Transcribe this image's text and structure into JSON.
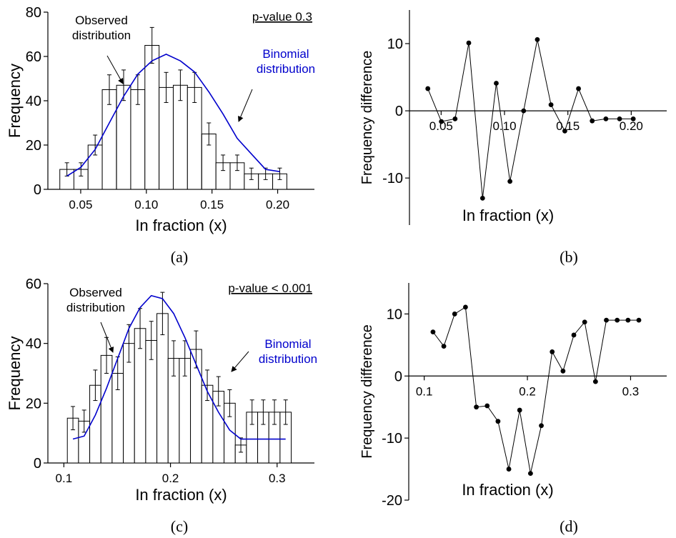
{
  "panels": {
    "a": {
      "caption": "(a)"
    },
    "b": {
      "caption": "(b)"
    },
    "c": {
      "caption": "(c)"
    },
    "d": {
      "caption": "(d)"
    }
  },
  "colors": {
    "axis": "#000000",
    "bars": "#000000",
    "binomial": "#0000cc",
    "diff": "#000000"
  },
  "chart_data": [
    {
      "panel": "a",
      "type": "bar",
      "xlabel": "In fraction (x)",
      "ylabel": "Frequency",
      "annotation_pvalue": "p-value 0.3",
      "annotation_observed": [
        "Observed",
        "distribution"
      ],
      "annotation_binomial": [
        "Binomial",
        "distribution"
      ],
      "xlim": [
        0.025,
        0.228
      ],
      "ylim": [
        0,
        80
      ],
      "xticks": [
        0.05,
        0.1,
        0.15,
        0.2
      ],
      "xtick_labels": [
        "0.05",
        "0.10",
        "0.15",
        "0.20"
      ],
      "yticks": [
        0,
        20,
        40,
        60,
        80
      ],
      "ytick_labels": [
        "0",
        "20",
        "40",
        "60",
        "80"
      ],
      "bar_width": 0.0108,
      "series": [
        {
          "name": "Observed distribution",
          "kind": "bar",
          "x": [
            0.0395,
            0.0502,
            0.061,
            0.0718,
            0.0827,
            0.0935,
            0.1043,
            0.1151,
            0.1259,
            0.1367,
            0.1476,
            0.1584,
            0.1692,
            0.18,
            0.1908,
            0.2016
          ],
          "values": [
            9,
            9,
            20,
            45,
            47,
            45,
            65,
            46,
            47,
            46,
            25,
            12,
            12,
            7,
            7,
            7
          ],
          "errors": [
            3,
            3,
            4.5,
            6.7,
            6.9,
            6.7,
            8.1,
            6.8,
            6.9,
            6.8,
            5,
            3.5,
            3.5,
            2.6,
            2.6,
            2.6
          ]
        },
        {
          "name": "Binomial distribution",
          "kind": "line",
          "x": [
            0.0395,
            0.0502,
            0.061,
            0.0718,
            0.0827,
            0.0935,
            0.1043,
            0.1151,
            0.1259,
            0.1367,
            0.1476,
            0.1584,
            0.1692,
            0.18,
            0.1908,
            0.2016
          ],
          "values": [
            6,
            10,
            18,
            30,
            42,
            52,
            58,
            61,
            58,
            53,
            44,
            34,
            23,
            16,
            9,
            8
          ]
        }
      ]
    },
    {
      "panel": "b",
      "type": "line",
      "xlabel": "In fraction (x)",
      "ylabel": "Frequency difference",
      "xlim": [
        0.025,
        0.228
      ],
      "ylim": [
        -17,
        15
      ],
      "xticks": [
        0.05,
        0.1,
        0.15,
        0.2
      ],
      "xtick_labels": [
        "0.05",
        "0.10",
        "0.15",
        "0.20"
      ],
      "yticks": [
        -10,
        0,
        10
      ],
      "ytick_labels": [
        "-10",
        "0",
        "10"
      ],
      "series": [
        {
          "kind": "line",
          "x": [
            0.0395,
            0.0502,
            0.061,
            0.0718,
            0.0827,
            0.0935,
            0.1043,
            0.1151,
            0.1259,
            0.1367,
            0.1476,
            0.1584,
            0.1692,
            0.18,
            0.1908,
            0.2016
          ],
          "values": [
            3.3,
            -1.6,
            -1.2,
            10.1,
            -13.0,
            4.1,
            -10.5,
            0.0,
            10.6,
            0.9,
            -3.0,
            3.3,
            -1.5,
            -1.2,
            -1.2,
            -1.2
          ]
        }
      ]
    },
    {
      "panel": "c",
      "type": "bar",
      "xlabel": "In fraction (x)",
      "ylabel": "Frequency",
      "annotation_pvalue": "p-value < 0.001",
      "annotation_observed": [
        "Observed",
        "distribution"
      ],
      "annotation_binomial": [
        "Binomial",
        "distribution"
      ],
      "xlim": [
        0.085,
        0.335
      ],
      "ylim": [
        0,
        60
      ],
      "xticks": [
        0.1,
        0.2,
        0.3
      ],
      "xtick_labels": [
        "0.1",
        "0.2",
        "0.3"
      ],
      "yticks": [
        0,
        20,
        40,
        60
      ],
      "ytick_labels": [
        "0",
        "20",
        "40",
        "60"
      ],
      "bar_width": 0.0105,
      "series": [
        {
          "name": "Observed distribution",
          "kind": "bar",
          "x": [
            0.1085,
            0.119,
            0.1295,
            0.14,
            0.1505,
            0.161,
            0.1715,
            0.182,
            0.1925,
            0.203,
            0.2135,
            0.224,
            0.2345,
            0.245,
            0.2555,
            0.266,
            0.2765,
            0.287,
            0.2975,
            0.308
          ],
          "values": [
            15,
            14,
            26,
            36,
            30,
            40,
            45,
            41,
            50,
            35,
            35,
            38,
            26,
            24,
            20,
            6,
            17,
            17,
            17,
            17
          ],
          "errors": [
            3.9,
            3.7,
            5.1,
            6.0,
            5.5,
            6.3,
            6.7,
            6.4,
            7.1,
            5.9,
            5.9,
            6.2,
            5.1,
            4.9,
            4.5,
            2.4,
            4.1,
            4.1,
            4.1,
            4.1
          ]
        },
        {
          "name": "Binomial distribution",
          "kind": "line",
          "x": [
            0.1085,
            0.119,
            0.1295,
            0.14,
            0.1505,
            0.161,
            0.1715,
            0.182,
            0.1925,
            0.203,
            0.2135,
            0.224,
            0.2345,
            0.245,
            0.2555,
            0.266,
            0.2765,
            0.287,
            0.2975,
            0.308
          ],
          "values": [
            8,
            9,
            16,
            25,
            35,
            45,
            52,
            56,
            55,
            50,
            42,
            33,
            24,
            17,
            11,
            8,
            8,
            8,
            8,
            8
          ]
        }
      ]
    },
    {
      "panel": "d",
      "type": "line",
      "xlabel": "In fraction (x)",
      "ylabel": "Frequency difference",
      "xlim": [
        0.085,
        0.335
      ],
      "ylim": [
        -20,
        15
      ],
      "xticks": [
        0.1,
        0.2,
        0.3
      ],
      "xtick_labels": [
        "0.1",
        "0.2",
        "0.3"
      ],
      "yticks": [
        -20,
        -10,
        0,
        10
      ],
      "ytick_labels": [
        "-20",
        "-10",
        "0",
        "10"
      ],
      "series": [
        {
          "kind": "line",
          "x": [
            0.1085,
            0.119,
            0.1295,
            0.14,
            0.1505,
            0.161,
            0.1715,
            0.182,
            0.1925,
            0.203,
            0.2135,
            0.224,
            0.2345,
            0.245,
            0.2555,
            0.266,
            0.2765,
            0.287,
            0.2975,
            0.308
          ],
          "values": [
            7.1,
            4.8,
            10.0,
            11.1,
            -5.0,
            -4.8,
            -7.3,
            -15.0,
            -5.5,
            -15.7,
            -8.0,
            3.9,
            0.8,
            6.6,
            8.7,
            -0.9,
            9.0,
            9.0,
            9.0,
            9.0
          ]
        }
      ]
    }
  ]
}
